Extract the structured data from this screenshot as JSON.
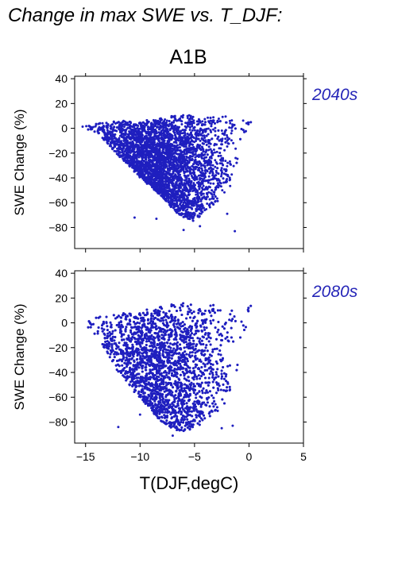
{
  "figure": {
    "title": "Change in max SWE vs. T_DJF:",
    "scenario": "A1B",
    "xlabel": "T(DJF,degC)",
    "point_color": "#1f1fbf"
  },
  "chart_data": [
    {
      "type": "scatter",
      "panel_label": "2040s",
      "xlabel": "",
      "ylabel": "SWE Change (%)",
      "xlim": [
        -16,
        5
      ],
      "ylim": [
        -97,
        42
      ],
      "xticks": [
        -15,
        -10,
        -5,
        0,
        5
      ],
      "yticks": [
        40,
        20,
        0,
        -20,
        -40,
        -60,
        -80
      ],
      "grid": false,
      "color": "#1f1fbf",
      "envelope": [
        {
          "x": -15.5,
          "ymin": 0,
          "ymax": 3
        },
        {
          "x": -14,
          "ymin": -3,
          "ymax": 4
        },
        {
          "x": -12,
          "ymin": -22,
          "ymax": 6
        },
        {
          "x": -10,
          "ymin": -40,
          "ymax": 6
        },
        {
          "x": -8,
          "ymin": -55,
          "ymax": 8
        },
        {
          "x": -6.5,
          "ymin": -70,
          "ymax": 11
        },
        {
          "x": -5,
          "ymin": -75,
          "ymax": 11
        },
        {
          "x": -3,
          "ymin": -60,
          "ymax": 11
        },
        {
          "x": -1.5,
          "ymin": -45,
          "ymax": 11
        },
        {
          "x": -0.5,
          "ymin": -5,
          "ymax": 7
        },
        {
          "x": 0.2,
          "ymin": 4,
          "ymax": 5
        }
      ],
      "outliers": [
        {
          "x": -1.3,
          "y": -83
        },
        {
          "x": -6,
          "y": -82
        },
        {
          "x": -8.5,
          "y": -73
        },
        {
          "x": -10.5,
          "y": -72
        },
        {
          "x": -4.5,
          "y": -79
        },
        {
          "x": -2,
          "y": -69
        }
      ]
    },
    {
      "type": "scatter",
      "panel_label": "2080s",
      "xlabel": "T(DJF,degC)",
      "ylabel": "SWE Change (%)",
      "xlim": [
        -16,
        5
      ],
      "ylim": [
        -97,
        42
      ],
      "xticks": [
        -15,
        -10,
        -5,
        0,
        5
      ],
      "yticks": [
        40,
        20,
        0,
        -20,
        -40,
        -60,
        -80
      ],
      "grid": false,
      "color": "#1f1fbf",
      "envelope": [
        {
          "x": -15.5,
          "ymin": 1,
          "ymax": 3
        },
        {
          "x": -14,
          "ymin": -10,
          "ymax": 5
        },
        {
          "x": -12,
          "ymin": -40,
          "ymax": 7
        },
        {
          "x": -10,
          "ymin": -62,
          "ymax": 10
        },
        {
          "x": -8,
          "ymin": -80,
          "ymax": 13
        },
        {
          "x": -6.5,
          "ymin": -88,
          "ymax": 16
        },
        {
          "x": -5,
          "ymin": -86,
          "ymax": 17
        },
        {
          "x": -3,
          "ymin": -72,
          "ymax": 17
        },
        {
          "x": -1.5,
          "ymin": -60,
          "ymax": 16
        },
        {
          "x": -0.5,
          "ymin": -10,
          "ymax": 15
        },
        {
          "x": 0.2,
          "ymin": 12,
          "ymax": 14
        }
      ],
      "outliers": [
        {
          "x": -1.5,
          "y": -83
        },
        {
          "x": -7,
          "y": -91
        },
        {
          "x": -12,
          "y": -84
        },
        {
          "x": -2.5,
          "y": -85
        },
        {
          "x": -10,
          "y": -74
        }
      ]
    }
  ]
}
